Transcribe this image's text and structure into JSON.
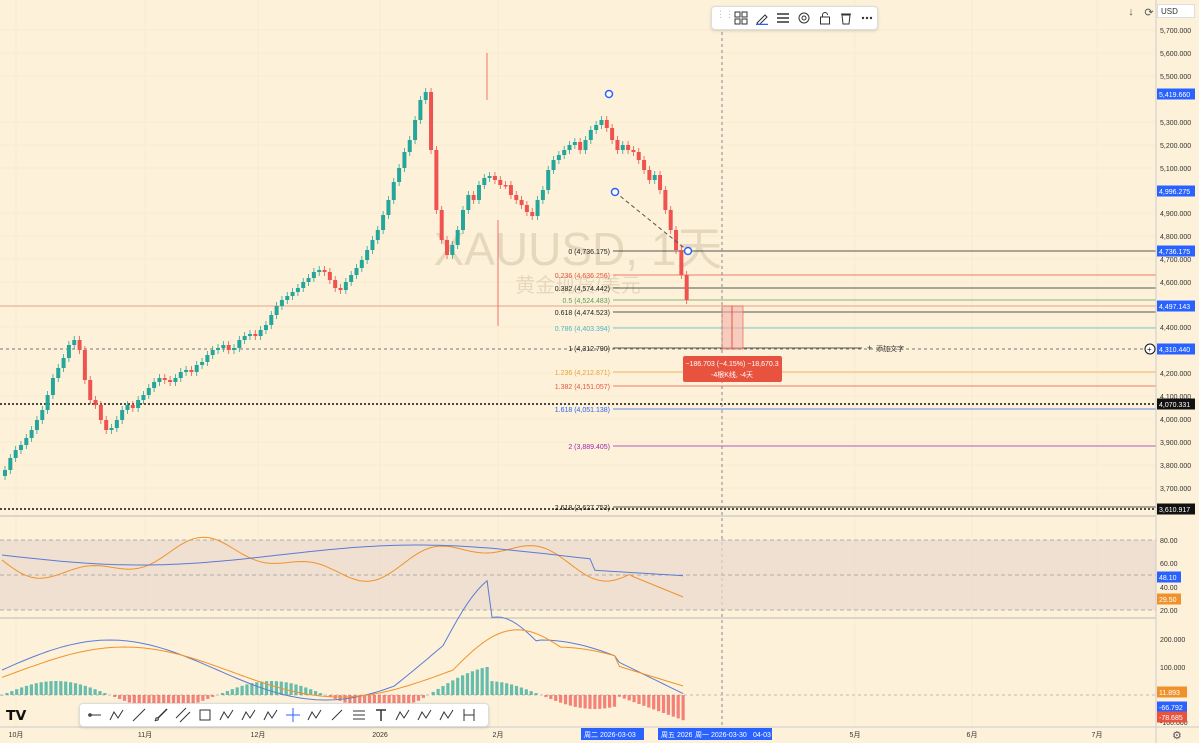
{
  "watermark": {
    "line1": "XAUUSD, 1天",
    "line2": "黄金现货/美元"
  },
  "currency": "USD",
  "toolbar_top": [
    "grip",
    "layout-icon",
    "pencil-icon",
    "line-style-icon",
    "settings-icon",
    "lock-icon",
    "trash-icon",
    "more-icon"
  ],
  "toolbar_bottom": [
    "horizontal-ray-icon",
    "abc-pattern-icon",
    "trend-line-icon",
    "ray-icon",
    "parallel-channel-icon",
    "rectangle-icon",
    "xabcd-icon",
    "abcd-icon",
    "path-icon",
    "crosshair-icon",
    "elliott-icon",
    "pen-icon",
    "fib-retracement-icon",
    "text-icon",
    "head-shoulders-icon",
    "abcd-2-icon",
    "polyline-icon",
    "date-range-icon"
  ],
  "price_axis": {
    "ticks": [
      "5,700.000",
      "5,600.000",
      "5,500.000",
      "5,300.000",
      "5,200.000",
      "5,100.000",
      "4,900.000",
      "4,800.000",
      "4,700.000",
      "4,600.000",
      "4,400.000",
      "4,200.000",
      "4,100.000",
      "4,000.000",
      "3,900.000",
      "3,800.000",
      "3,700.000"
    ],
    "badges": [
      {
        "label": "5,419.660",
        "bg": "#2962ff"
      },
      {
        "label": "4,996.275",
        "bg": "#2962ff"
      },
      {
        "label": "4,736.175",
        "bg": "#2962ff"
      },
      {
        "label": "4,497.143",
        "bg": "#2962ff"
      },
      {
        "label": "4,310.440",
        "bg": "#2962ff"
      },
      {
        "label": "4,070.331",
        "bg": "#111111"
      },
      {
        "label": "3,610.917",
        "bg": "#111111"
      }
    ]
  },
  "fib_levels": [
    {
      "label": "0 (4,736.175)",
      "color": "#222222"
    },
    {
      "label": "0.236 (4,636.256)",
      "color": "#e8533f"
    },
    {
      "label": "0.382 (4,574.442)",
      "color": "#222222"
    },
    {
      "label": "0.5 (4,524.483)",
      "color": "#5e9c5a"
    },
    {
      "label": "0.618 (4,474.523)",
      "color": "#222222"
    },
    {
      "label": "0.786 (4,403.394)",
      "color": "#4db6c9"
    },
    {
      "label": "1 (4,312.790)",
      "color": "#222222"
    },
    {
      "label": "1.236 (4,212.871)",
      "color": "#e8a23a"
    },
    {
      "label": "1.382 (4,151.057)",
      "color": "#e8533f"
    },
    {
      "label": "1.618 (4,051.138)",
      "color": "#2962ff"
    },
    {
      "label": "2 (3,889.405)",
      "color": "#9c27b0"
    },
    {
      "label": "2.618 (3,627.753)",
      "color": "#222222"
    }
  ],
  "add_text_label": "添加文字",
  "measure_tooltip": {
    "line1": "−186.703 (−4.15%) −18,670.3",
    "line2": "-4根K线, -4天"
  },
  "rsi_panel": {
    "ticks": [
      "80.00",
      "60.00",
      "40.00",
      "20.00"
    ],
    "badges": [
      {
        "label": "48.10",
        "bg": "#2962ff"
      },
      {
        "label": "29.50",
        "bg": "#f0922b"
      }
    ]
  },
  "macd_panel": {
    "ticks": [
      "200.000",
      "100.000",
      "-100.000"
    ],
    "badges": [
      {
        "label": "11.893",
        "bg": "#f0922b"
      },
      {
        "label": "-66.792",
        "bg": "#2962ff"
      },
      {
        "label": "-78.685",
        "bg": "#e8533f"
      }
    ]
  },
  "time_axis": {
    "labels": [
      "10月",
      "11月",
      "12月",
      "2026",
      "2月",
      "5月",
      "6月",
      "7月"
    ],
    "highlights": [
      "周二 2026-03-03",
      "周五 2026",
      "周一 2026-03-30",
      "04-03"
    ]
  }
}
